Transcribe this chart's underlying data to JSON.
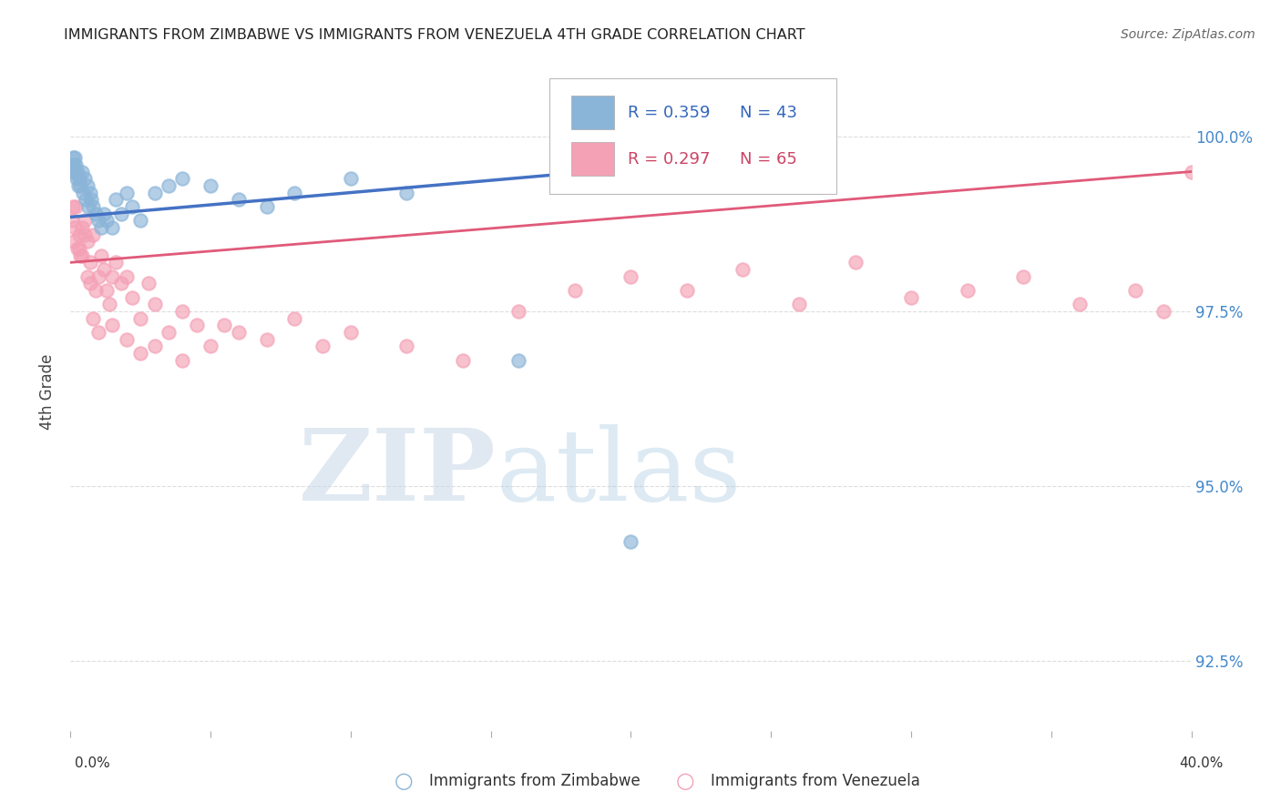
{
  "title": "IMMIGRANTS FROM ZIMBABWE VS IMMIGRANTS FROM VENEZUELA 4TH GRADE CORRELATION CHART",
  "source": "Source: ZipAtlas.com",
  "ylabel": "4th Grade",
  "xmin": 0.0,
  "xmax": 40.0,
  "ymin": 91.5,
  "ymax": 101.2,
  "yticks": [
    92.5,
    95.0,
    97.5,
    100.0
  ],
  "ytick_labels": [
    "92.5%",
    "95.0%",
    "97.5%",
    "100.0%"
  ],
  "legend": {
    "zim_R": "0.359",
    "zim_N": "43",
    "ven_R": "0.297",
    "ven_N": "65"
  },
  "watermark_zip": "ZIP",
  "watermark_atlas": "atlas",
  "zim_color": "#8ab4d8",
  "ven_color": "#f4a0b5",
  "zim_line_color": "#4472c4",
  "ven_line_color": "#e05a7a",
  "background_color": "#ffffff",
  "zim_x": [
    0.05,
    0.08,
    0.1,
    0.12,
    0.15,
    0.18,
    0.2,
    0.22,
    0.25,
    0.28,
    0.3,
    0.35,
    0.4,
    0.45,
    0.5,
    0.55,
    0.6,
    0.65,
    0.7,
    0.75,
    0.8,
    0.9,
    1.0,
    1.1,
    1.2,
    1.3,
    1.5,
    1.6,
    1.8,
    2.0,
    2.2,
    2.5,
    3.0,
    3.5,
    4.0,
    5.0,
    6.0,
    7.0,
    8.0,
    10.0,
    12.0,
    16.0,
    20.0
  ],
  "zim_y": [
    99.6,
    99.5,
    99.7,
    99.6,
    99.7,
    99.5,
    99.6,
    99.4,
    99.5,
    99.3,
    99.4,
    99.3,
    99.5,
    99.2,
    99.4,
    99.1,
    99.3,
    99.0,
    99.2,
    99.1,
    99.0,
    98.9,
    98.8,
    98.7,
    98.9,
    98.8,
    98.7,
    99.1,
    98.9,
    99.2,
    99.0,
    98.8,
    99.2,
    99.3,
    99.4,
    99.3,
    99.1,
    99.0,
    99.2,
    99.4,
    99.2,
    96.8,
    94.2
  ],
  "ven_x": [
    0.05,
    0.08,
    0.12,
    0.15,
    0.2,
    0.25,
    0.3,
    0.35,
    0.4,
    0.5,
    0.6,
    0.7,
    0.8,
    0.9,
    1.0,
    1.1,
    1.2,
    1.3,
    1.4,
    1.5,
    1.6,
    1.8,
    2.0,
    2.2,
    2.5,
    2.8,
    3.0,
    3.5,
    4.0,
    4.5,
    5.0,
    5.5,
    6.0,
    7.0,
    8.0,
    9.0,
    10.0,
    12.0,
    14.0,
    16.0,
    18.0,
    20.0,
    22.0,
    24.0,
    26.0,
    28.0,
    30.0,
    32.0,
    34.0,
    36.0,
    38.0,
    39.0,
    40.0,
    0.3,
    0.4,
    0.5,
    0.6,
    0.7,
    0.8,
    1.0,
    1.5,
    2.0,
    2.5,
    3.0,
    4.0
  ],
  "ven_y": [
    98.8,
    99.0,
    98.5,
    98.7,
    99.0,
    98.4,
    98.6,
    98.3,
    98.7,
    98.8,
    98.5,
    98.2,
    98.6,
    97.8,
    98.0,
    98.3,
    98.1,
    97.8,
    97.6,
    98.0,
    98.2,
    97.9,
    98.0,
    97.7,
    97.4,
    97.9,
    97.6,
    97.2,
    97.5,
    97.3,
    97.0,
    97.3,
    97.2,
    97.1,
    97.4,
    97.0,
    97.2,
    97.0,
    96.8,
    97.5,
    97.8,
    98.0,
    97.8,
    98.1,
    97.6,
    98.2,
    97.7,
    97.8,
    98.0,
    97.6,
    97.8,
    97.5,
    99.5,
    98.4,
    98.3,
    98.6,
    98.0,
    97.9,
    97.4,
    97.2,
    97.3,
    97.1,
    96.9,
    97.0,
    96.8
  ],
  "zim_trend_x0": 0.0,
  "zim_trend_x1": 20.0,
  "zim_trend_y0": 98.85,
  "zim_trend_y1": 99.55,
  "ven_trend_x0": 0.0,
  "ven_trend_x1": 40.0,
  "ven_trend_y0": 98.2,
  "ven_trend_y1": 99.5
}
